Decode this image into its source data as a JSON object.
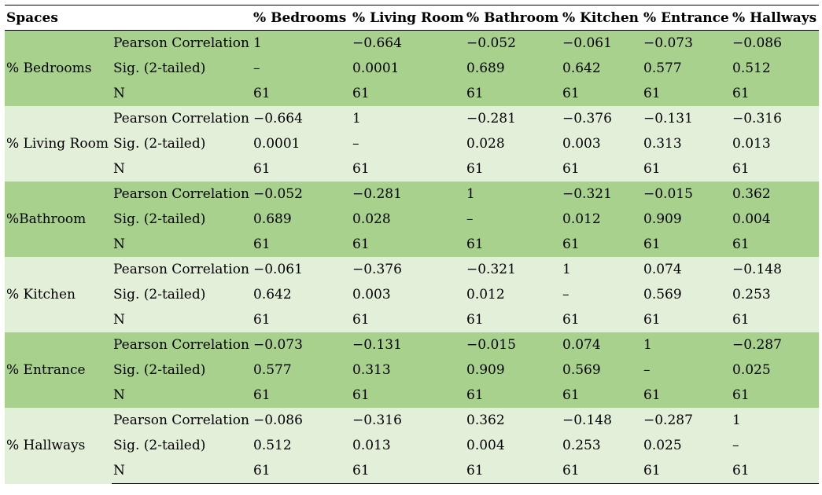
{
  "headers": [
    "Spaces",
    "",
    "% Bedrooms",
    "% Living Room",
    "% Bathroom",
    "% Kitchen",
    "% Entrance",
    "% Hallways"
  ],
  "stat_labels": [
    "Pearson Correlation",
    "Sig. (2-tailed)",
    "N"
  ],
  "colors": {
    "group_dark": "#a9d18e",
    "group_light": "#e2efd9"
  },
  "groups": [
    {
      "space": "% Bedrooms",
      "rows": [
        [
          "1",
          "−0.664",
          "−0.052",
          "−0.061",
          "−0.073",
          "−0.086"
        ],
        [
          "–",
          "0.0001",
          "0.689",
          "0.642",
          "0.577",
          "0.512"
        ],
        [
          "61",
          "61",
          "61",
          "61",
          "61",
          "61"
        ]
      ]
    },
    {
      "space": "% Living Room",
      "rows": [
        [
          "−0.664",
          "1",
          "−0.281",
          "−0.376",
          "−0.131",
          "−0.316"
        ],
        [
          "0.0001",
          "–",
          "0.028",
          "0.003",
          "0.313",
          "0.013"
        ],
        [
          "61",
          "61",
          "61",
          "61",
          "61",
          "61"
        ]
      ]
    },
    {
      "space": "%Bathroom",
      "rows": [
        [
          "−0.052",
          "−0.281",
          "1",
          "−0.321",
          "−0.015",
          "0.362"
        ],
        [
          "0.689",
          "0.028",
          "–",
          "0.012",
          "0.909",
          "0.004"
        ],
        [
          "61",
          "61",
          "61",
          "61",
          "61",
          "61"
        ]
      ]
    },
    {
      "space": "% Kitchen",
      "rows": [
        [
          "−0.061",
          "−0.376",
          "−0.321",
          "1",
          "0.074",
          "−0.148"
        ],
        [
          "0.642",
          "0.003",
          "0.012",
          "–",
          "0.569",
          "0.253"
        ],
        [
          "61",
          "61",
          "61",
          "61",
          "61",
          "61"
        ]
      ]
    },
    {
      "space": "% Entrance",
      "rows": [
        [
          "−0.073",
          "−0.131",
          "−0.015",
          "0.074",
          "1",
          "−0.287"
        ],
        [
          "0.577",
          "0.313",
          "0.909",
          "0.569",
          "–",
          "0.025"
        ],
        [
          "61",
          "61",
          "61",
          "61",
          "61",
          "61"
        ]
      ]
    },
    {
      "space": "% Hallways",
      "rows": [
        [
          "−0.086",
          "−0.316",
          "0.362",
          "−0.148",
          "−0.287",
          "1"
        ],
        [
          "0.512",
          "0.013",
          "0.004",
          "0.253",
          "0.025",
          "–"
        ],
        [
          "61",
          "61",
          "61",
          "61",
          "61",
          "61"
        ]
      ]
    }
  ]
}
